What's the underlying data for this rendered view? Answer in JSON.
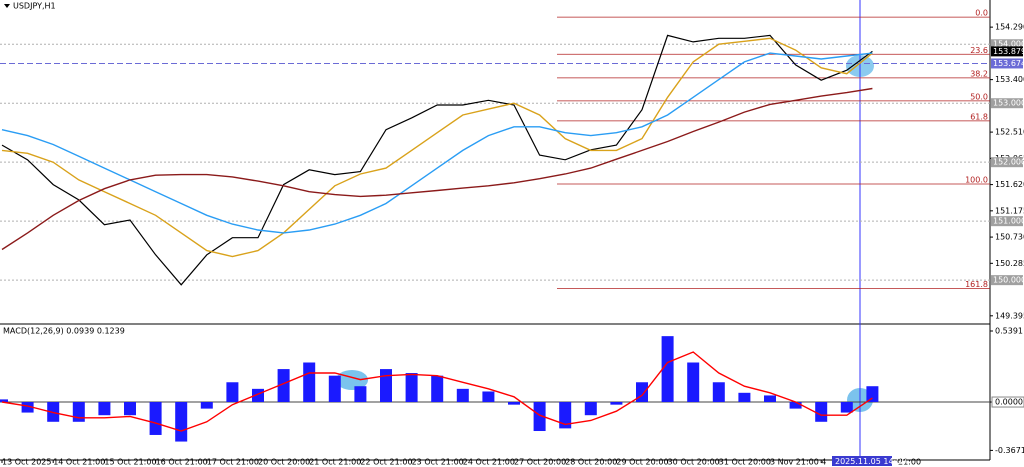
{
  "chart_data": [
    {
      "type": "line",
      "title": "USDJPY,H1",
      "crosshair_time": "2025.11.05 14:00",
      "categories": [
        "13 Oct 2025",
        null,
        "14 Oct 21:00",
        null,
        "15 Oct 21:00",
        null,
        "16 Oct 21:00",
        null,
        "17 Oct 21:00",
        null,
        "20 Oct 20:00",
        null,
        "21 Oct 21:00",
        null,
        "22 Oct 21:00",
        null,
        "23 Oct 21:00",
        null,
        "24 Oct 21:00",
        null,
        "27 Oct 20:00",
        null,
        "28 Oct 20:00",
        null,
        "29 Oct 20:00",
        null,
        "30 Oct 20:00",
        null,
        "31 Oct 20:00",
        null,
        "3 Nov 21:00",
        null,
        "4",
        null,
        null,
        "21:00"
      ],
      "series": [
        {
          "color": "#000000",
          "values": [
            152.29,
            152.04,
            151.62,
            151.36,
            150.94,
            151.02,
            150.43,
            149.92,
            150.43,
            150.72,
            150.72,
            151.62,
            151.87,
            151.79,
            151.84,
            152.55,
            152.75,
            152.97,
            152.97,
            153.05,
            152.97,
            152.12,
            152.04,
            152.21,
            152.29,
            152.89,
            154.15,
            154.04,
            154.1,
            154.1,
            154.15,
            153.65,
            153.39,
            153.56,
            153.88,
            null
          ]
        },
        {
          "color": "#d9a21b",
          "values": [
            152.2,
            152.15,
            152.0,
            151.7,
            151.5,
            151.3,
            151.1,
            150.8,
            150.5,
            150.4,
            150.5,
            150.8,
            151.2,
            151.6,
            151.8,
            151.9,
            152.2,
            152.5,
            152.8,
            152.9,
            153.0,
            152.8,
            152.4,
            152.2,
            152.2,
            152.4,
            153.1,
            153.7,
            154.0,
            154.05,
            154.1,
            153.9,
            153.6,
            153.5,
            153.85,
            null
          ]
        },
        {
          "color": "#2a9df4",
          "values": [
            152.55,
            152.45,
            152.3,
            152.1,
            151.9,
            151.7,
            151.5,
            151.3,
            151.1,
            150.95,
            150.85,
            150.8,
            150.85,
            150.95,
            151.1,
            151.3,
            151.6,
            151.9,
            152.2,
            152.45,
            152.6,
            152.6,
            152.5,
            152.45,
            152.5,
            152.6,
            152.8,
            153.1,
            153.4,
            153.7,
            153.85,
            153.8,
            153.75,
            153.8,
            153.85,
            null
          ]
        },
        {
          "color": "#8b1a1a",
          "values": [
            150.52,
            150.8,
            151.1,
            151.35,
            151.55,
            151.7,
            151.78,
            151.79,
            151.79,
            151.75,
            151.68,
            151.6,
            151.5,
            151.45,
            151.42,
            151.44,
            151.48,
            151.52,
            151.56,
            151.6,
            151.65,
            151.72,
            151.8,
            151.9,
            152.05,
            152.2,
            152.35,
            152.52,
            152.68,
            152.85,
            152.98,
            153.05,
            153.12,
            153.18,
            153.25,
            null
          ]
        }
      ],
      "ylim": [
        149.29,
        154.75
      ],
      "yticks": [
        {
          "value": 154.29,
          "label": "154.290"
        },
        {
          "value": 153.4,
          "label": "153.400"
        },
        {
          "value": 152.51,
          "label": "152.510"
        },
        152.065,
        {
          "value": 151.62,
          "label": "151.620"
        },
        151.175,
        {
          "value": 150.73,
          "label": "150.730"
        },
        150.285,
        149.395
      ],
      "fib_color": "#b22222",
      "fib_levels": [
        {
          "value": 154.46,
          "label": "0.0"
        },
        {
          "value": 153.83,
          "label": "23.6"
        },
        {
          "value": 153.43,
          "label": "38.2"
        },
        {
          "value": 153.04,
          "label": "50.0"
        },
        {
          "value": 152.7,
          "label": "61.8"
        },
        {
          "value": 151.63,
          "label": "100.0"
        },
        {
          "value": 149.86,
          "label": "161.8"
        }
      ],
      "level_lines": [
        {
          "value": 154.0,
          "label": "154.000"
        },
        {
          "value": 153.0,
          "label": "153.000"
        },
        {
          "value": 152.0,
          "label": "152.000"
        },
        {
          "value": 151.0,
          "label": "151.000"
        },
        {
          "value": 150.0,
          "label": "150.000"
        }
      ],
      "alert_line": {
        "value": 153.674,
        "label": "153.674",
        "color": "#6b6bd6"
      },
      "current_price": {
        "value": 153.879,
        "label": "153.879"
      }
    },
    {
      "type": "bar",
      "title": "MACD(12,26,9) 0.0939 0.1239",
      "series": [
        {
          "color": "#1a1aff",
          "values": [
            0.02,
            -0.08,
            -0.15,
            -0.15,
            -0.1,
            -0.1,
            -0.25,
            -0.3,
            -0.05,
            0.15,
            0.1,
            0.25,
            0.3,
            0.2,
            0.12,
            0.25,
            0.22,
            0.2,
            0.1,
            0.08,
            -0.02,
            -0.22,
            -0.2,
            -0.1,
            -0.02,
            0.15,
            0.5,
            0.3,
            0.15,
            0.07,
            0.05,
            -0.05,
            -0.15,
            -0.08,
            0.12,
            null
          ]
        },
        {
          "type": "line",
          "color": "#ff0000",
          "values": [
            0.0,
            -0.03,
            -0.08,
            -0.12,
            -0.12,
            -0.11,
            -0.16,
            -0.22,
            -0.15,
            -0.02,
            0.06,
            0.14,
            0.22,
            0.22,
            0.17,
            0.2,
            0.21,
            0.2,
            0.15,
            0.1,
            0.04,
            -0.1,
            -0.17,
            -0.14,
            -0.07,
            0.05,
            0.3,
            0.38,
            0.22,
            0.12,
            0.07,
            0.0,
            -0.1,
            -0.1,
            0.03,
            null
          ]
        }
      ],
      "ylim": [
        -0.44,
        0.577
      ],
      "yticks": [
        0.5391,
        {
          "value": 0,
          "label": "0.0000"
        },
        -0.3671
      ]
    }
  ]
}
